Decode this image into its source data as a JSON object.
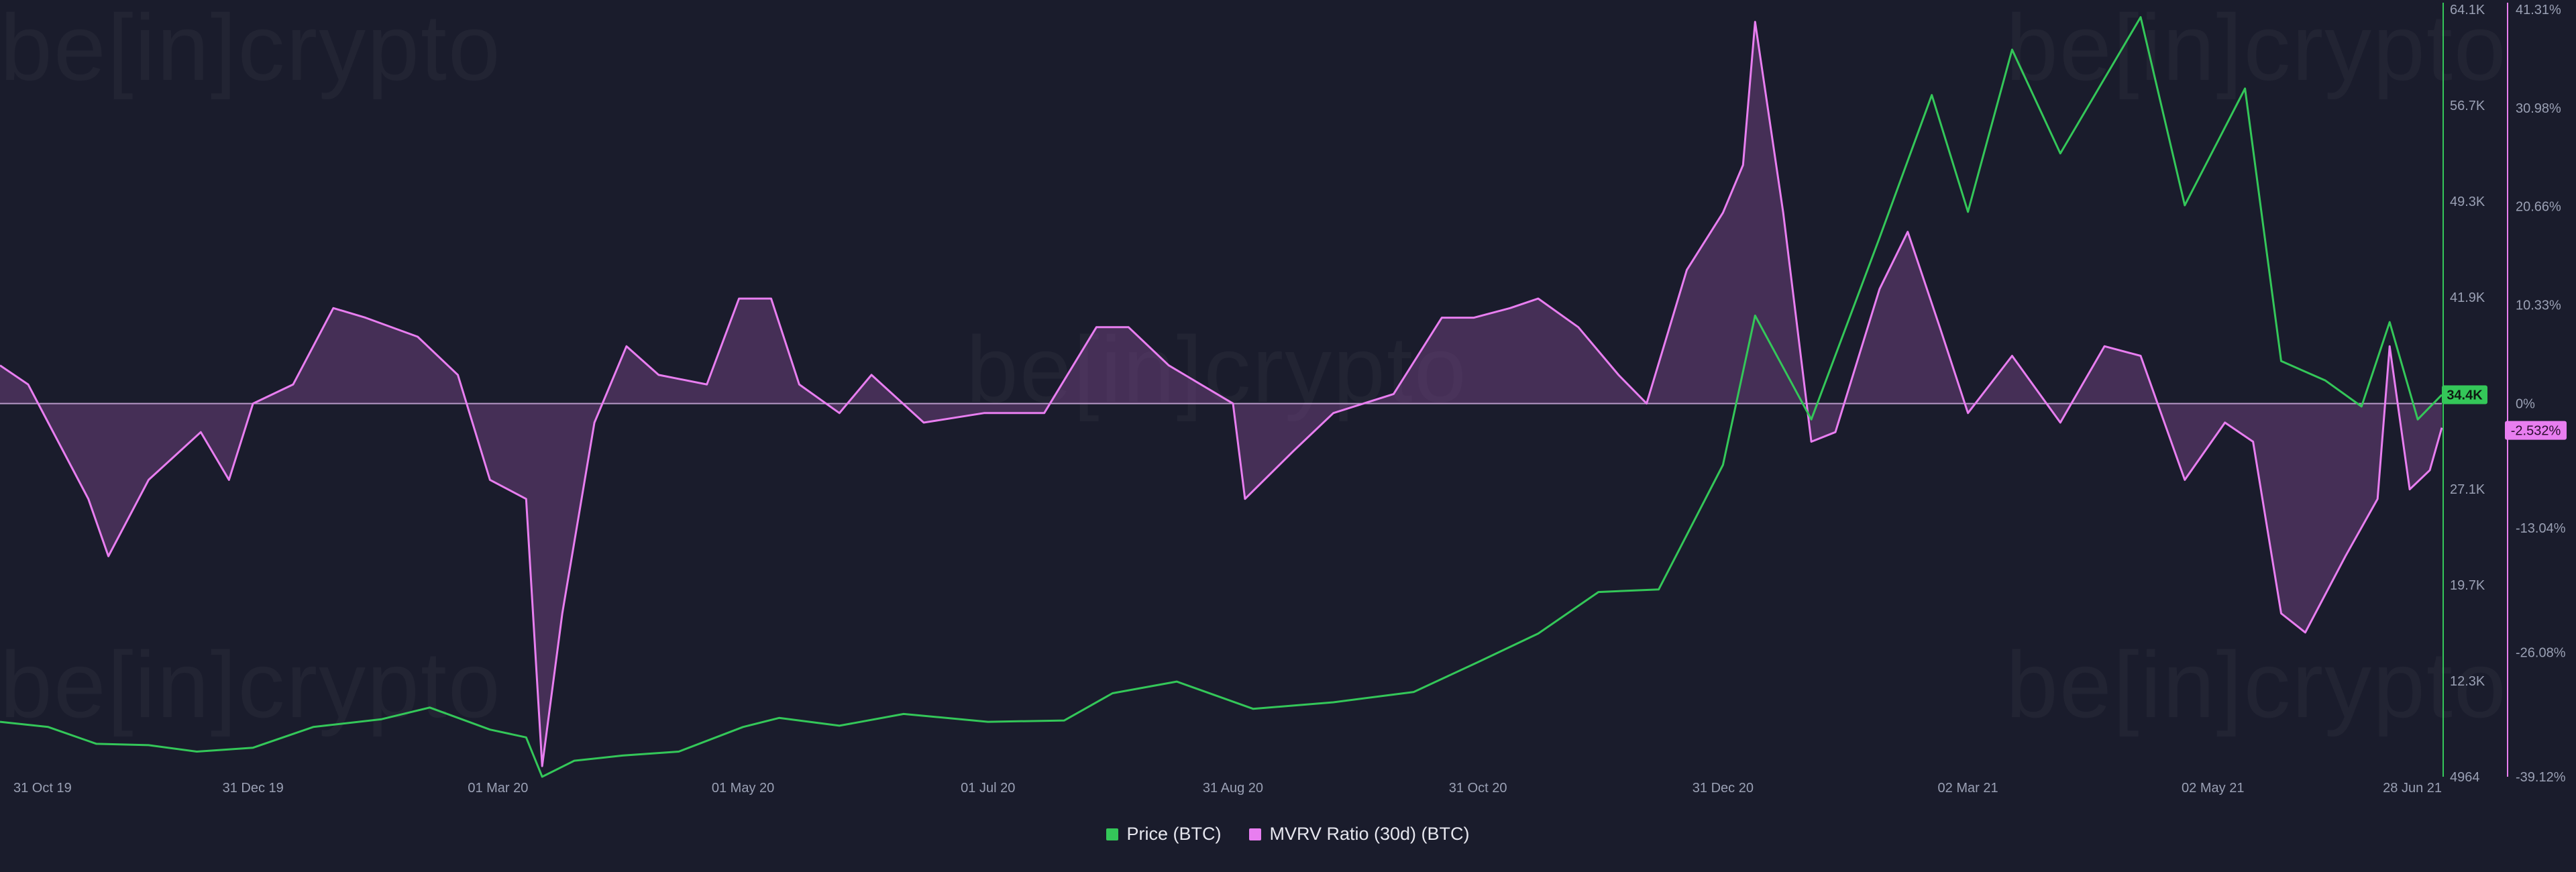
{
  "colors": {
    "background": "#1a1c2c",
    "price": "#34c759",
    "mvrv": "#e87ef0",
    "mvrv_fill": "#6a3f7a",
    "zero_line": "#d8b6e8",
    "axis_text": "#9aa0b4"
  },
  "watermark": {
    "text": "be[in]crypto"
  },
  "legend": {
    "price": "Price (BTC)",
    "mvrv": "MVRV Ratio (30d) (BTC)"
  },
  "badges": {
    "price_value": "34.4K",
    "mvrv_value": "-2.532%"
  },
  "chart_data": {
    "type": "line",
    "x_axis": {
      "ticks": [
        "31 Oct 19",
        "31 Dec 19",
        "01 Mar 20",
        "01 May 20",
        "01 Jul 20",
        "31 Aug 20",
        "31 Oct 20",
        "31 Dec 20",
        "02 Mar 21",
        "02 May 21",
        "28 Jun 21"
      ],
      "tick_dates": [
        "2019-10-31",
        "2019-12-31",
        "2020-03-01",
        "2020-05-01",
        "2020-07-01",
        "2020-08-31",
        "2020-10-31",
        "2020-12-31",
        "2021-03-02",
        "2021-05-02",
        "2021-06-28"
      ],
      "range": [
        "2019-10-29",
        "2021-06-28"
      ]
    },
    "y_axis_price": {
      "ticks": [
        "64.1K",
        "56.7K",
        "49.3K",
        "41.9K",
        "34.4K",
        "27.1K",
        "19.7K",
        "12.3K",
        "4964"
      ],
      "range": [
        4964,
        64100
      ]
    },
    "y_axis_mvrv": {
      "ticks": [
        "41.31%",
        "30.98%",
        "20.66%",
        "10.33%",
        "0%",
        "-13.04%",
        "-26.08%",
        "-39.12%"
      ],
      "ticks_values": [
        41.31,
        30.98,
        20.66,
        10.33,
        0,
        -13.04,
        -26.08,
        -39.12
      ],
      "range_top": 41.31,
      "range_bottom": -39.12
    },
    "series": [
      {
        "name": "Price (BTC)",
        "axis": "left",
        "points": [
          [
            "2019-10-29",
            9200
          ],
          [
            "2019-11-10",
            8800
          ],
          [
            "2019-11-22",
            7500
          ],
          [
            "2019-12-05",
            7400
          ],
          [
            "2019-12-17",
            6900
          ],
          [
            "2019-12-31",
            7200
          ],
          [
            "2020-01-15",
            8800
          ],
          [
            "2020-02-01",
            9400
          ],
          [
            "2020-02-13",
            10300
          ],
          [
            "2020-02-28",
            8600
          ],
          [
            "2020-03-08",
            8000
          ],
          [
            "2020-03-12",
            4964
          ],
          [
            "2020-03-20",
            6200
          ],
          [
            "2020-04-01",
            6600
          ],
          [
            "2020-04-15",
            6900
          ],
          [
            "2020-05-01",
            8800
          ],
          [
            "2020-05-10",
            9500
          ],
          [
            "2020-05-25",
            8900
          ],
          [
            "2020-06-10",
            9800
          ],
          [
            "2020-07-01",
            9200
          ],
          [
            "2020-07-20",
            9300
          ],
          [
            "2020-08-01",
            11400
          ],
          [
            "2020-08-17",
            12300
          ],
          [
            "2020-09-05",
            10200
          ],
          [
            "2020-09-25",
            10700
          ],
          [
            "2020-10-15",
            11500
          ],
          [
            "2020-10-31",
            13800
          ],
          [
            "2020-11-15",
            16000
          ],
          [
            "2020-11-30",
            19200
          ],
          [
            "2020-12-15",
            19400
          ],
          [
            "2020-12-31",
            29000
          ],
          [
            "2021-01-08",
            40500
          ],
          [
            "2021-01-22",
            32500
          ],
          [
            "2021-02-08",
            46500
          ],
          [
            "2021-02-21",
            57500
          ],
          [
            "2021-03-02",
            48500
          ],
          [
            "2021-03-13",
            61000
          ],
          [
            "2021-03-25",
            53000
          ],
          [
            "2021-04-14",
            63500
          ],
          [
            "2021-04-25",
            49000
          ],
          [
            "2021-05-10",
            58000
          ],
          [
            "2021-05-19",
            37000
          ],
          [
            "2021-05-30",
            35500
          ],
          [
            "2021-06-08",
            33500
          ],
          [
            "2021-06-15",
            40000
          ],
          [
            "2021-06-22",
            32500
          ],
          [
            "2021-06-28",
            34400
          ]
        ]
      },
      {
        "name": "MVRV Ratio (30d) (BTC)",
        "axis": "right",
        "points": [
          [
            "2019-10-29",
            4
          ],
          [
            "2019-11-05",
            2
          ],
          [
            "2019-11-10",
            -2
          ],
          [
            "2019-11-20",
            -10
          ],
          [
            "2019-11-25",
            -16
          ],
          [
            "2019-12-05",
            -8
          ],
          [
            "2019-12-18",
            -3
          ],
          [
            "2019-12-25",
            -8
          ],
          [
            "2019-12-31",
            0
          ],
          [
            "2020-01-10",
            2
          ],
          [
            "2020-01-20",
            10
          ],
          [
            "2020-01-28",
            9
          ],
          [
            "2020-02-10",
            7
          ],
          [
            "2020-02-20",
            3
          ],
          [
            "2020-02-28",
            -8
          ],
          [
            "2020-03-08",
            -10
          ],
          [
            "2020-03-12",
            -38
          ],
          [
            "2020-03-17",
            -22
          ],
          [
            "2020-03-25",
            -2
          ],
          [
            "2020-04-02",
            6
          ],
          [
            "2020-04-10",
            3
          ],
          [
            "2020-04-22",
            2
          ],
          [
            "2020-04-30",
            11
          ],
          [
            "2020-05-08",
            11
          ],
          [
            "2020-05-15",
            2
          ],
          [
            "2020-05-25",
            -1
          ],
          [
            "2020-06-02",
            3
          ],
          [
            "2020-06-15",
            -2
          ],
          [
            "2020-06-30",
            -1
          ],
          [
            "2020-07-15",
            -1
          ],
          [
            "2020-07-28",
            8
          ],
          [
            "2020-08-05",
            8
          ],
          [
            "2020-08-15",
            4
          ],
          [
            "2020-08-31",
            0
          ],
          [
            "2020-09-03",
            -10
          ],
          [
            "2020-09-15",
            -5
          ],
          [
            "2020-09-25",
            -1
          ],
          [
            "2020-10-10",
            1
          ],
          [
            "2020-10-22",
            9
          ],
          [
            "2020-10-30",
            9
          ],
          [
            "2020-11-08",
            10
          ],
          [
            "2020-11-15",
            11
          ],
          [
            "2020-11-25",
            8
          ],
          [
            "2020-12-05",
            3
          ],
          [
            "2020-12-12",
            0
          ],
          [
            "2020-12-22",
            14
          ],
          [
            "2020-12-31",
            20
          ],
          [
            "2021-01-05",
            25
          ],
          [
            "2021-01-08",
            40
          ],
          [
            "2021-01-15",
            20
          ],
          [
            "2021-01-22",
            -4
          ],
          [
            "2021-01-28",
            -3
          ],
          [
            "2021-02-08",
            12
          ],
          [
            "2021-02-15",
            18
          ],
          [
            "2021-02-23",
            8
          ],
          [
            "2021-03-02",
            -1
          ],
          [
            "2021-03-13",
            5
          ],
          [
            "2021-03-25",
            -2
          ],
          [
            "2021-04-05",
            6
          ],
          [
            "2021-04-14",
            5
          ],
          [
            "2021-04-25",
            -8
          ],
          [
            "2021-05-05",
            -2
          ],
          [
            "2021-05-12",
            -4
          ],
          [
            "2021-05-19",
            -22
          ],
          [
            "2021-05-25",
            -24
          ],
          [
            "2021-06-04",
            -16
          ],
          [
            "2021-06-12",
            -10
          ],
          [
            "2021-06-15",
            6
          ],
          [
            "2021-06-20",
            -9
          ],
          [
            "2021-06-25",
            -7
          ],
          [
            "2021-06-28",
            -2.532
          ]
        ]
      }
    ],
    "grid": false,
    "legend_position": "bottom-center"
  }
}
